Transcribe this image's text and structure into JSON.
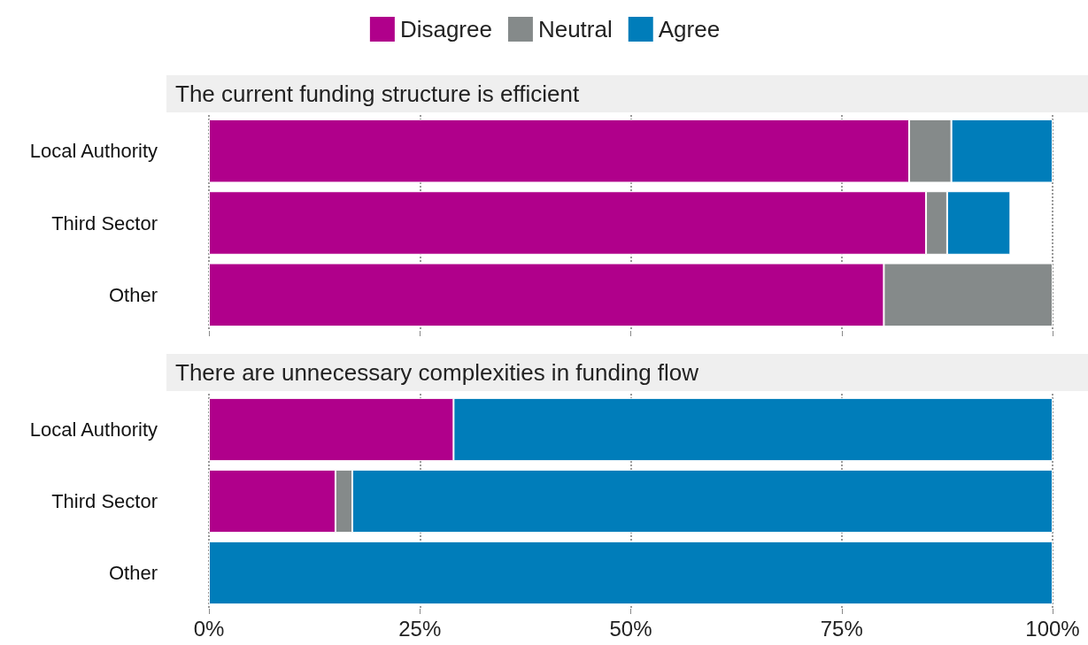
{
  "chart_data": [
    {
      "type": "bar",
      "title": "The current funding structure is efficient",
      "orientation": "horizontal",
      "stacked": true,
      "categories": [
        "Local Authority",
        "Third Sector",
        "Other"
      ],
      "xlim": [
        0,
        100
      ],
      "xticks": [
        {
          "value": 0,
          "label": null
        },
        {
          "value": 25,
          "label": null
        },
        {
          "value": 50,
          "label": null
        },
        {
          "value": 75,
          "label": null
        },
        {
          "value": 100,
          "label": null
        }
      ],
      "grid": "x",
      "legend": "top",
      "tick_labels": "y",
      "series": [
        {
          "name": "Disagree",
          "color": "#b0008b",
          "values": [
            83,
            85,
            80
          ]
        },
        {
          "name": "Neutral",
          "color": "#858a8a",
          "values": [
            5,
            2.5,
            20
          ]
        },
        {
          "name": "Agree",
          "color": "#007dba",
          "values": [
            12,
            7.5,
            0
          ]
        }
      ]
    },
    {
      "type": "bar",
      "title": "There are unnecessary complexities in funding flow",
      "orientation": "horizontal",
      "stacked": true,
      "categories": [
        "Local Authority",
        "Third Sector",
        "Other"
      ],
      "xlim": [
        0,
        100
      ],
      "xticks": [
        {
          "value": 0,
          "label": "0%"
        },
        {
          "value": 25,
          "label": "25%"
        },
        {
          "value": 50,
          "label": "50%"
        },
        {
          "value": 75,
          "label": "75%"
        },
        {
          "value": 100,
          "label": "100%"
        }
      ],
      "grid": "x",
      "series": [
        {
          "color": "#b0008b",
          "values": [
            29,
            15,
            0
          ]
        },
        {
          "color": "#858a8a",
          "values": [
            0,
            2,
            0
          ]
        },
        {
          "color": "#007dba",
          "values": [
            71,
            83,
            100
          ]
        }
      ]
    }
  ]
}
